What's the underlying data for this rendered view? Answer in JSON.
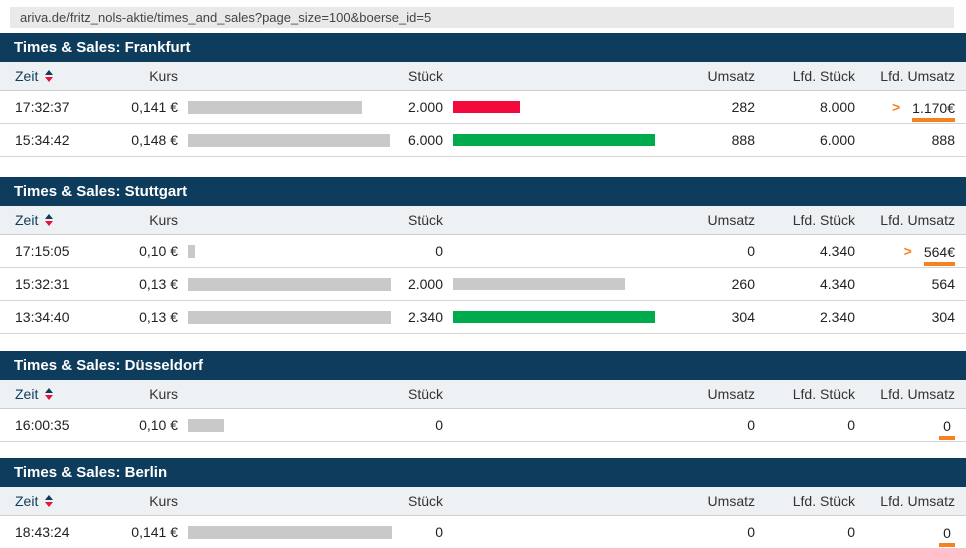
{
  "browser": {
    "url": "ariva.de/fritz_nols-aktie/times_and_sales?page_size=100&boerse_id=5"
  },
  "colors": {
    "header_navy": "#0d3c5c",
    "column_header_bg": "#eef1f4",
    "bar_grey": "#c9c9c9",
    "bar_red": "#f30a3c",
    "bar_green": "#00ab4e",
    "accent_orange": "#f58220",
    "sort_arrow_red": "#e8113c"
  },
  "columns": {
    "zeit": "Zeit",
    "kurs": "Kurs",
    "stueck": "Stück",
    "umsatz": "Umsatz",
    "lfd_stueck": "Lfd. Stück",
    "lfd_umsatz": "Lfd. Umsatz"
  },
  "tables": [
    {
      "title": "Times & Sales: Frankfurt",
      "rows": [
        {
          "zeit": "17:32:37",
          "kurs": "0,141 €",
          "kurs_bar": 174,
          "stueck": "2.000",
          "stueck_bar": 67,
          "stueck_bar_color": "red",
          "umsatz": "282",
          "lfd_stueck": "8.000",
          "lfd_umsatz": "1.170€",
          "arrow": true,
          "underline": true
        },
        {
          "zeit": "15:34:42",
          "kurs": "0,148 €",
          "kurs_bar": 202,
          "stueck": "6.000",
          "stueck_bar": 202,
          "stueck_bar_color": "green",
          "umsatz": "888",
          "lfd_stueck": "6.000",
          "lfd_umsatz": "888",
          "arrow": false,
          "underline": false
        }
      ]
    },
    {
      "title": "Times & Sales: Stuttgart",
      "rows": [
        {
          "zeit": "17:15:05",
          "kurs": "0,10 €",
          "kurs_bar": 7,
          "stueck": "0",
          "stueck_bar": 0,
          "stueck_bar_color": "grey",
          "umsatz": "0",
          "lfd_stueck": "4.340",
          "lfd_umsatz": "564€",
          "arrow": true,
          "underline": true
        },
        {
          "zeit": "15:32:31",
          "kurs": "0,13 €",
          "kurs_bar": 203,
          "stueck": "2.000",
          "stueck_bar": 172,
          "stueck_bar_color": "grey",
          "umsatz": "260",
          "lfd_stueck": "4.340",
          "lfd_umsatz": "564",
          "arrow": false,
          "underline": false
        },
        {
          "zeit": "13:34:40",
          "kurs": "0,13 €",
          "kurs_bar": 203,
          "stueck": "2.340",
          "stueck_bar": 202,
          "stueck_bar_color": "green",
          "umsatz": "304",
          "lfd_stueck": "2.340",
          "lfd_umsatz": "304",
          "arrow": false,
          "underline": false
        }
      ]
    },
    {
      "title": "Times & Sales: Düsseldorf",
      "rows": [
        {
          "zeit": "16:00:35",
          "kurs": "0,10 €",
          "kurs_bar": 36,
          "stueck": "0",
          "stueck_bar": 0,
          "stueck_bar_color": "grey",
          "umsatz": "0",
          "lfd_stueck": "0",
          "lfd_umsatz": "0",
          "arrow": false,
          "underline": true
        }
      ]
    },
    {
      "title": "Times & Sales: Berlin",
      "rows": [
        {
          "zeit": "18:43:24",
          "kurs": "0,141 €",
          "kurs_bar": 204,
          "stueck": "0",
          "stueck_bar": 0,
          "stueck_bar_color": "grey",
          "umsatz": "0",
          "lfd_stueck": "0",
          "lfd_umsatz": "0",
          "arrow": false,
          "underline": true
        }
      ]
    }
  ]
}
